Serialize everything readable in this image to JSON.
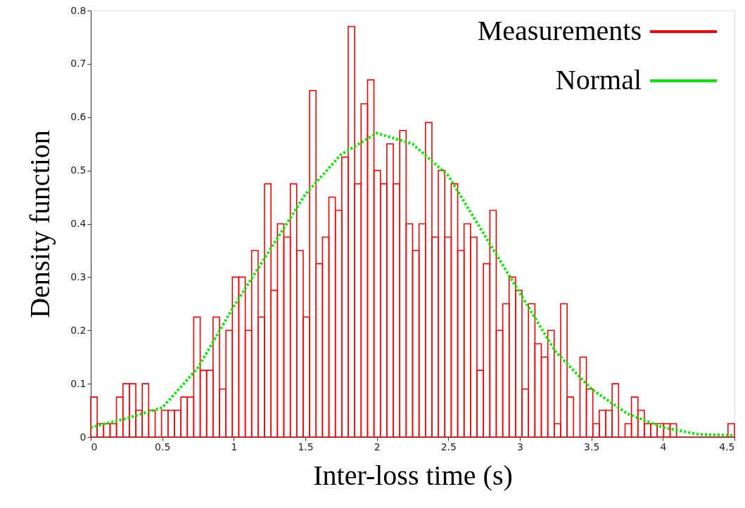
{
  "chart_data": {
    "type": "histogram",
    "xlabel": "Inter-loss time (s)",
    "ylabel": "Density function",
    "xlim": [
      0,
      4.5
    ],
    "ylim": [
      0,
      0.8
    ],
    "xticks": [
      0,
      0.5,
      1,
      1.5,
      2,
      2.5,
      3,
      3.5,
      4,
      4.5
    ],
    "yticks": [
      0,
      0.1,
      0.2,
      0.3,
      0.4,
      0.5,
      0.6,
      0.7,
      0.8
    ],
    "grid": false,
    "legend": "top right",
    "bins": [
      0,
      0.045,
      0.09,
      0.135,
      0.18,
      0.225,
      0.27,
      0.315,
      0.36,
      0.405,
      0.45,
      0.495,
      0.54,
      0.585,
      0.63,
      0.675,
      0.72,
      0.765,
      0.81,
      0.855,
      0.9,
      0.945,
      0.99,
      1.035,
      1.08,
      1.125,
      1.17,
      1.215,
      1.26,
      1.305,
      1.35,
      1.395,
      1.44,
      1.485,
      1.53,
      1.575,
      1.62,
      1.665,
      1.71,
      1.755,
      1.8,
      1.845,
      1.89,
      1.935,
      1.98,
      2.025,
      2.07,
      2.115,
      2.16,
      2.205,
      2.25,
      2.295,
      2.34,
      2.385,
      2.43,
      2.475,
      2.52,
      2.565,
      2.61,
      2.655,
      2.7,
      2.745,
      2.79,
      2.835,
      2.88,
      2.925,
      2.97,
      3.015,
      3.06,
      3.105,
      3.15,
      3.195,
      3.24,
      3.285,
      3.33,
      3.375,
      3.42,
      3.465,
      3.51,
      3.555,
      3.6,
      3.645,
      3.69,
      3.735,
      3.78,
      3.825,
      3.87,
      3.915,
      3.96,
      4.005,
      4.05,
      4.095,
      4.14,
      4.185,
      4.23,
      4.275,
      4.32,
      4.365,
      4.41,
      4.455,
      4.5
    ],
    "series": [
      {
        "name": "Measurements",
        "color": "#ff0000",
        "values": [
          0.075,
          0.025,
          0.025,
          0.025,
          0.075,
          0.1,
          0.1,
          0.05,
          0.1,
          0.05,
          0,
          0.05,
          0.05,
          0.05,
          0.075,
          0.075,
          0.225,
          0.125,
          0.125,
          0.225,
          0.09,
          0.2,
          0.3,
          0.3,
          0.2,
          0.35,
          0.225,
          0.475,
          0.275,
          0.4,
          0.375,
          0.475,
          0.35,
          0.225,
          0.65,
          0.325,
          0.375,
          0.45,
          0.425,
          0.525,
          0.77,
          0.475,
          0.625,
          0.67,
          0.5,
          0.475,
          0.55,
          0.475,
          0.575,
          0.4,
          0.35,
          0.4,
          0.59,
          0.375,
          0.5,
          0.375,
          0.475,
          0.35,
          0.4,
          0.375,
          0.125,
          0.325,
          0.425,
          0.2,
          0.25,
          0.3,
          0.275,
          0.09,
          0.25,
          0.175,
          0.15,
          0.2,
          0.025,
          0.25,
          0.075,
          0,
          0.15,
          0.09,
          0.025,
          0.05,
          0.05,
          0.1,
          0,
          0.025,
          0.075,
          0.05,
          0.025,
          0.025,
          0.025,
          0.025,
          0.025,
          0,
          0,
          0,
          0,
          0,
          0,
          0,
          0,
          0.025
        ]
      },
      {
        "name": "Normal",
        "type": "line",
        "color": "#00ee00",
        "line_style": "dotted",
        "x": [
          0,
          0.25,
          0.5,
          0.75,
          1,
          1.25,
          1.5,
          1.75,
          2,
          2.25,
          2.5,
          2.75,
          3,
          3.25,
          3.5,
          3.75,
          4,
          4.25,
          4.5
        ],
        "values": [
          0.018,
          0.035,
          0.055,
          0.13,
          0.245,
          0.35,
          0.455,
          0.53,
          0.57,
          0.55,
          0.49,
          0.38,
          0.27,
          0.16,
          0.09,
          0.044,
          0.018,
          0.005,
          0.003
        ]
      }
    ]
  }
}
